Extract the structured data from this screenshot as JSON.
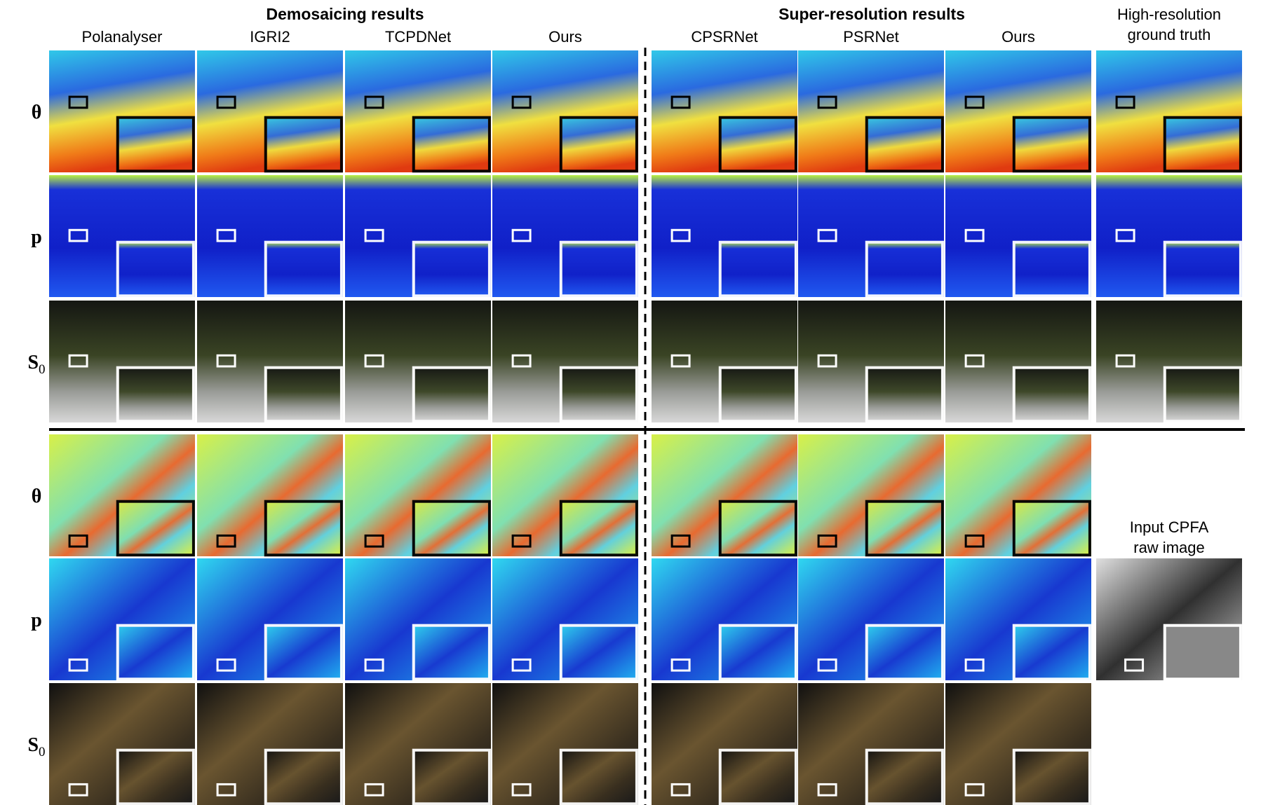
{
  "header": {
    "demosaicing": "Demosaicing results",
    "super_resolution": "Super-resolution results"
  },
  "columns": [
    [
      "Polanalyser"
    ],
    [
      "IGRI2"
    ],
    [
      "TCPDNet"
    ],
    [
      "Ours"
    ],
    [
      "CPSRNet"
    ],
    [
      "PSRNet"
    ],
    [
      "Ours"
    ],
    [
      "High-resolution",
      "ground truth"
    ]
  ],
  "rows": [
    {
      "symbol": "θ"
    },
    {
      "symbol": "p"
    },
    {
      "symbol": "S",
      "subscript": "0"
    }
  ],
  "input_label": [
    "Input CPFA",
    "raw image"
  ]
}
